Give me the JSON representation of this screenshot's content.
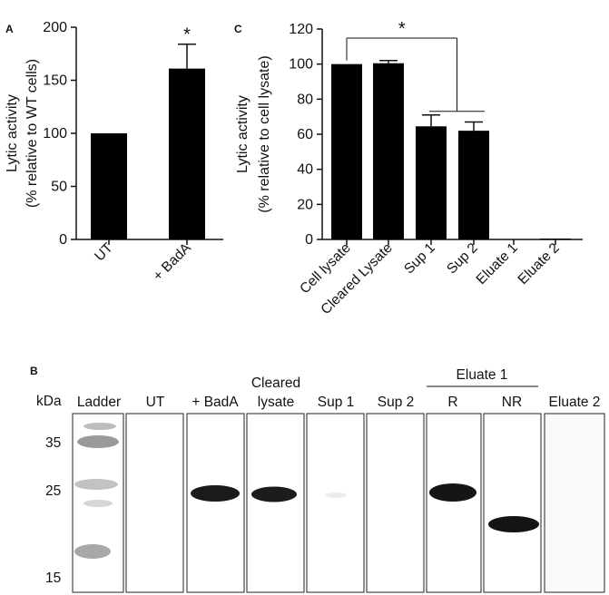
{
  "panels": {
    "A": {
      "letter": "A"
    },
    "B": {
      "letter": "B"
    },
    "C": {
      "letter": "C"
    }
  },
  "chart_data": [
    {
      "id": "A",
      "type": "bar",
      "categories": [
        "UT",
        "+ BadA"
      ],
      "values": [
        100,
        161
      ],
      "errors": [
        0,
        23
      ],
      "ylabel_lines": [
        "Lytic activity",
        "(% relative to WT cells)"
      ],
      "ylim": [
        0,
        200
      ],
      "yticks": [
        0,
        50,
        100,
        150,
        200
      ],
      "significance": [
        {
          "label": "*",
          "over": "+ BadA"
        }
      ],
      "bar_color": "#000000",
      "grid": false
    },
    {
      "id": "C",
      "type": "bar",
      "categories": [
        "Cell lysate",
        "Cleared Lysate",
        "Sup 1",
        "Sup 2",
        "Eluate 1",
        "Eluate 2"
      ],
      "values": [
        100,
        100.5,
        64.5,
        62,
        0,
        0.3
      ],
      "errors": [
        0,
        1.5,
        6.5,
        5,
        0,
        0
      ],
      "ylabel_lines": [
        "Lytic activity",
        "(% relative to cell lysate)"
      ],
      "ylim": [
        0,
        120
      ],
      "yticks": [
        0,
        20,
        40,
        60,
        80,
        100,
        120
      ],
      "significance": [
        {
          "label": "*",
          "from": "Cell lysate",
          "to": [
            "Sup 1",
            "Sup 2"
          ]
        }
      ],
      "bar_color": "#000000",
      "grid": false
    }
  ],
  "blot": {
    "kda_label": "kDa",
    "markers": [
      "35",
      "25",
      "15"
    ],
    "lanes": [
      {
        "label": "Ladder"
      },
      {
        "label": "UT"
      },
      {
        "label": "+ BadA"
      },
      {
        "label": "lysate",
        "header": "Cleared"
      },
      {
        "label": "Sup 1"
      },
      {
        "label": "Sup 2"
      },
      {
        "label": "R"
      },
      {
        "label": "NR"
      },
      {
        "label": "Eluate 2"
      }
    ],
    "group_label": "Eluate 1"
  }
}
